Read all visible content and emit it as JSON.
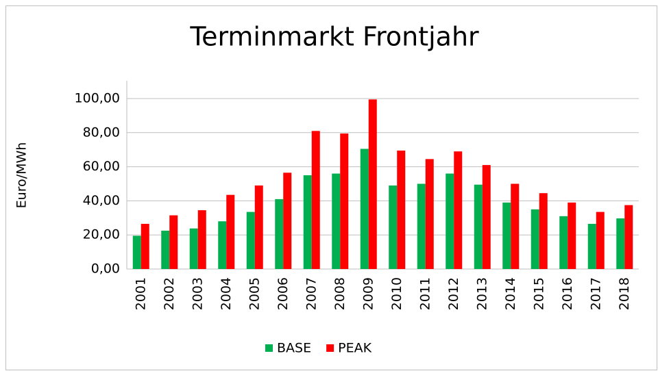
{
  "chart_data": {
    "type": "bar",
    "title": "Terminmarkt Frontjahr",
    "y_label": "Euro/MWh",
    "categories": [
      "2001",
      "2002",
      "2003",
      "2004",
      "2005",
      "2006",
      "2007",
      "2008",
      "2009",
      "2010",
      "2011",
      "2012",
      "2013",
      "2014",
      "2015",
      "2016",
      "2017",
      "2018"
    ],
    "series": [
      {
        "name": "BASE",
        "color": "#00b050",
        "values": [
          19.5,
          22.5,
          23.8,
          28,
          33.5,
          41,
          55,
          56,
          70.5,
          49,
          50,
          56,
          49.5,
          39,
          35,
          31,
          26.5,
          29.7
        ]
      },
      {
        "name": "PEAK",
        "color": "#ff0000",
        "values": [
          26.5,
          31.5,
          34.5,
          43.5,
          49,
          56.5,
          81,
          79.5,
          99.5,
          69.5,
          64.5,
          69,
          61,
          50,
          44.5,
          39,
          33.5,
          37.5
        ]
      }
    ],
    "ylim": [
      0,
      100
    ],
    "yticks": [
      {
        "value": 0,
        "label": "0,00"
      },
      {
        "value": 20,
        "label": "20,00"
      },
      {
        "value": 40,
        "label": "40,00"
      },
      {
        "value": 60,
        "label": "60,00"
      },
      {
        "value": 80,
        "label": "80,00"
      },
      {
        "value": 100,
        "label": "100,00"
      }
    ],
    "grid": true,
    "legend": "bottom"
  }
}
